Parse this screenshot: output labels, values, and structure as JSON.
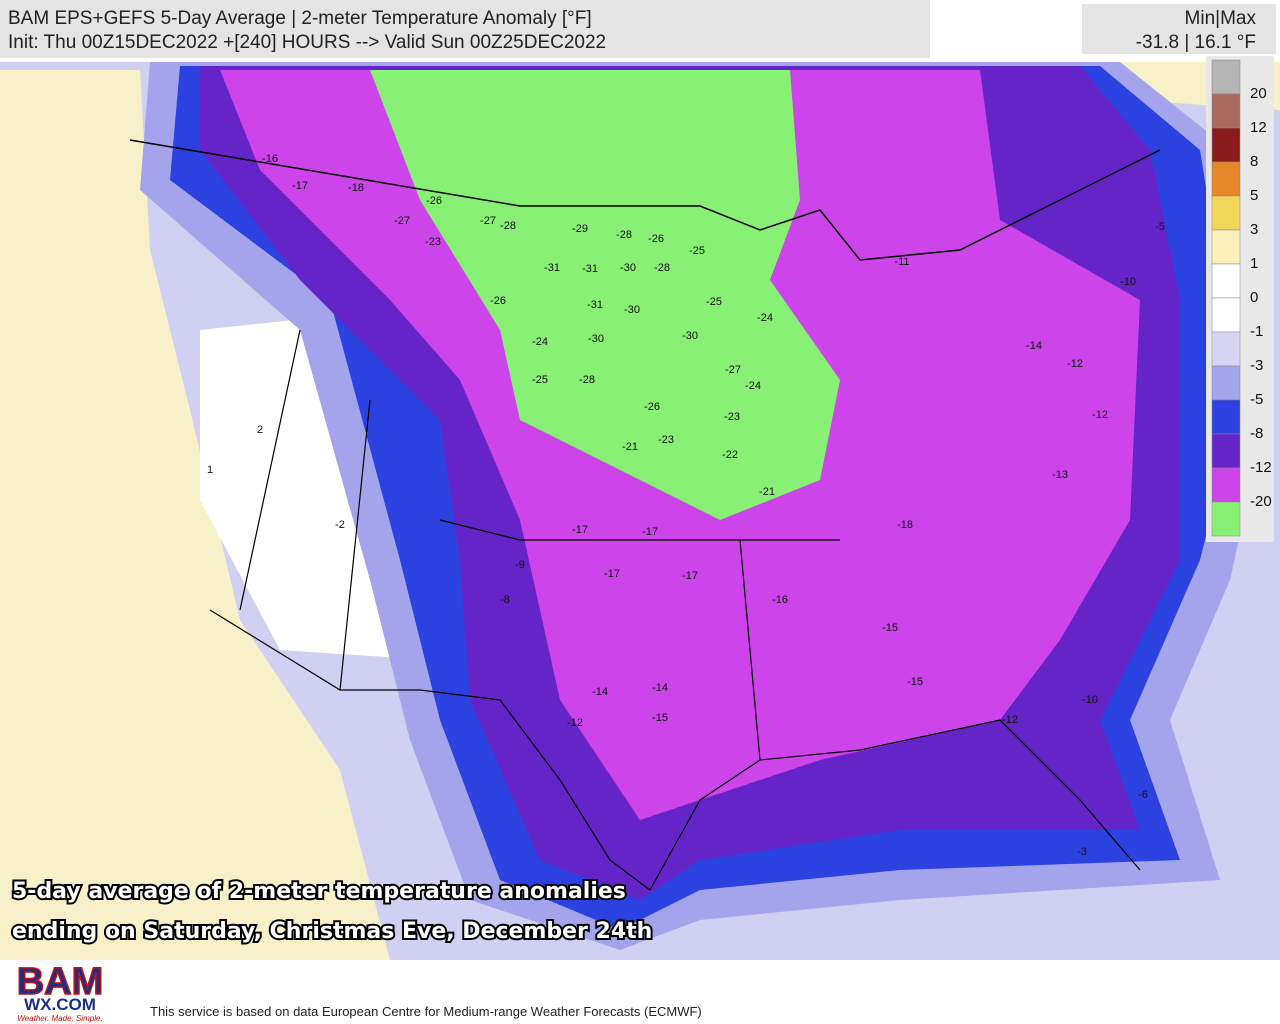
{
  "header": {
    "title": "BAM EPS+GEFS 5-Day Average | 2-meter Temperature Anomaly [°F]",
    "subtitle": "Init: Thu 00Z15DEC2022 +[240] HOURS --> Valid Sun 00Z25DEC2022",
    "minmax_title": "Min|Max",
    "minmax_values": "-31.8 | 16.1 °F"
  },
  "legend": {
    "colors": [
      "#b4b4b4",
      "#a86a5e",
      "#8c1c1c",
      "#e8862a",
      "#f4d65a",
      "#f8f0b8",
      "#ffffff",
      "#ffffff",
      "#d6d6f2",
      "#a4a4ec",
      "#2c42e0",
      "#6424c8",
      "#cc44ea",
      "#88f074"
    ],
    "ticks": [
      20,
      12,
      8,
      5,
      3,
      1,
      0,
      -1,
      -3,
      -5,
      -8,
      -12,
      -20
    ]
  },
  "map_labels": [
    -26,
    -27,
    -28,
    -29,
    -28,
    -26,
    -25,
    -31,
    -31,
    -30,
    -28,
    -26,
    -31,
    -30,
    -25,
    -24,
    -24,
    -30,
    -30,
    -25,
    -28,
    -27,
    -24,
    -26,
    -23,
    -23,
    -22,
    -21,
    -21,
    -16,
    -17,
    -18,
    -27,
    -23,
    -17,
    -17,
    -17,
    -17,
    -16,
    -18,
    -15,
    -15,
    -14,
    -12,
    -14,
    -15,
    -14,
    -12,
    -12,
    -13,
    -11,
    -10,
    -5,
    -2,
    2,
    1,
    -9,
    -8,
    -10,
    -12,
    -6,
    -3
  ],
  "caption": [
    "5-day average of 2-meter temperature anomalies",
    "ending on Saturday, Christmas Eve, December 24th"
  ],
  "footer": {
    "logo_top": "BAM",
    "logo_mid": "WX.COM",
    "logo_tag": "Weather. Made. Simple.",
    "note": "This service is based on data European Centre for Medium-range Weather Forecasts (ECMWF)"
  }
}
